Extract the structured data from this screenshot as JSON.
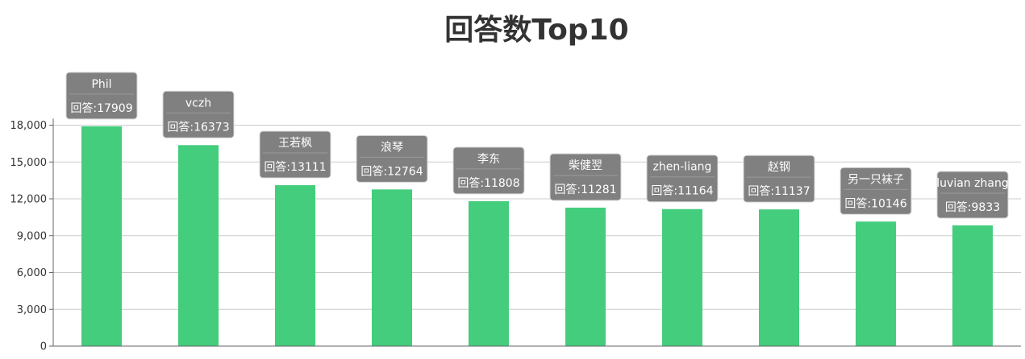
{
  "chart_data": {
    "type": "bar",
    "title": "回答数Top10",
    "categories": [
      "Phil",
      "vczh",
      "王若枫",
      "浪琴",
      "李东",
      "柴健翌",
      "zhen-liang",
      "赵钢",
      "另一只袜子",
      "luvian zhang"
    ],
    "values": [
      17909,
      16373,
      13111,
      12764,
      11808,
      11281,
      11164,
      11137,
      10146,
      9833
    ],
    "label_prefix": "回答:",
    "ylim": [
      0,
      18000
    ],
    "yticks": [
      0,
      3000,
      6000,
      9000,
      12000,
      15000,
      18000
    ],
    "ytick_labels": [
      "0",
      "3,000",
      "6,000",
      "9,000",
      "12,000",
      "15,000",
      "18,000"
    ],
    "grid": true,
    "colors": {
      "bar": "#43cd7d",
      "tooltip_bg": "#808080",
      "grid": "#cccccc",
      "axis": "#666666"
    }
  }
}
